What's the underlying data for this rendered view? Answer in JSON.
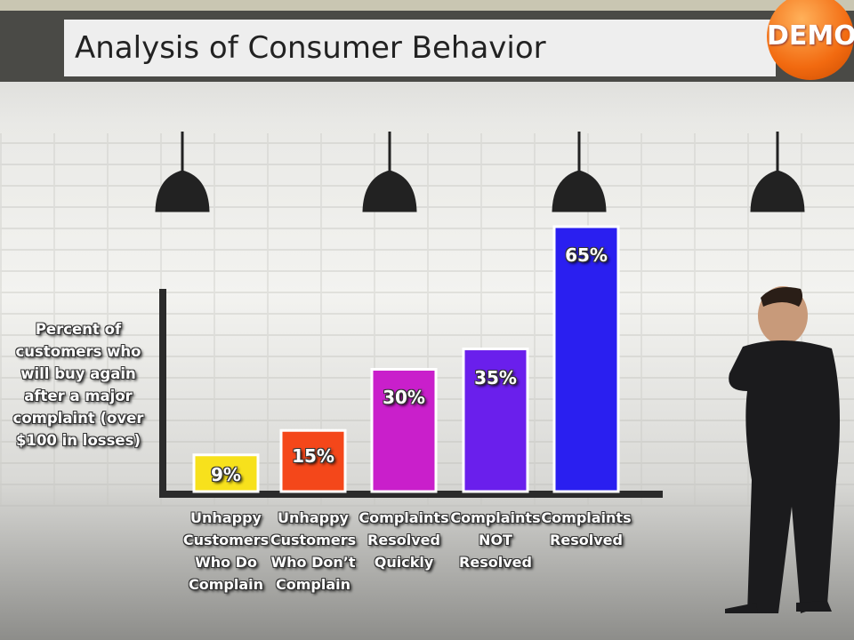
{
  "chart_data": {
    "type": "bar",
    "title": "Analysis of Consumer Behavior",
    "badge": "DEMO",
    "y_label": "Percent of customers who will buy again after a major complaint (over $100 in losses)",
    "categories": [
      "Unhappy Customers Who Do Complain",
      "Unhappy Customers Who Don’t Complain",
      "Complaints Resolved Quickly",
      "Complaints NOT Resolved",
      "Complaints Resolved"
    ],
    "values": [
      9,
      15,
      30,
      35,
      65
    ],
    "value_labels": [
      "9%",
      "15%",
      "30%",
      "35%",
      "65%"
    ],
    "colors": [
      "#f7e11c",
      "#f4471a",
      "#c91fcb",
      "#6a1fec",
      "#2a1ff0"
    ]
  }
}
